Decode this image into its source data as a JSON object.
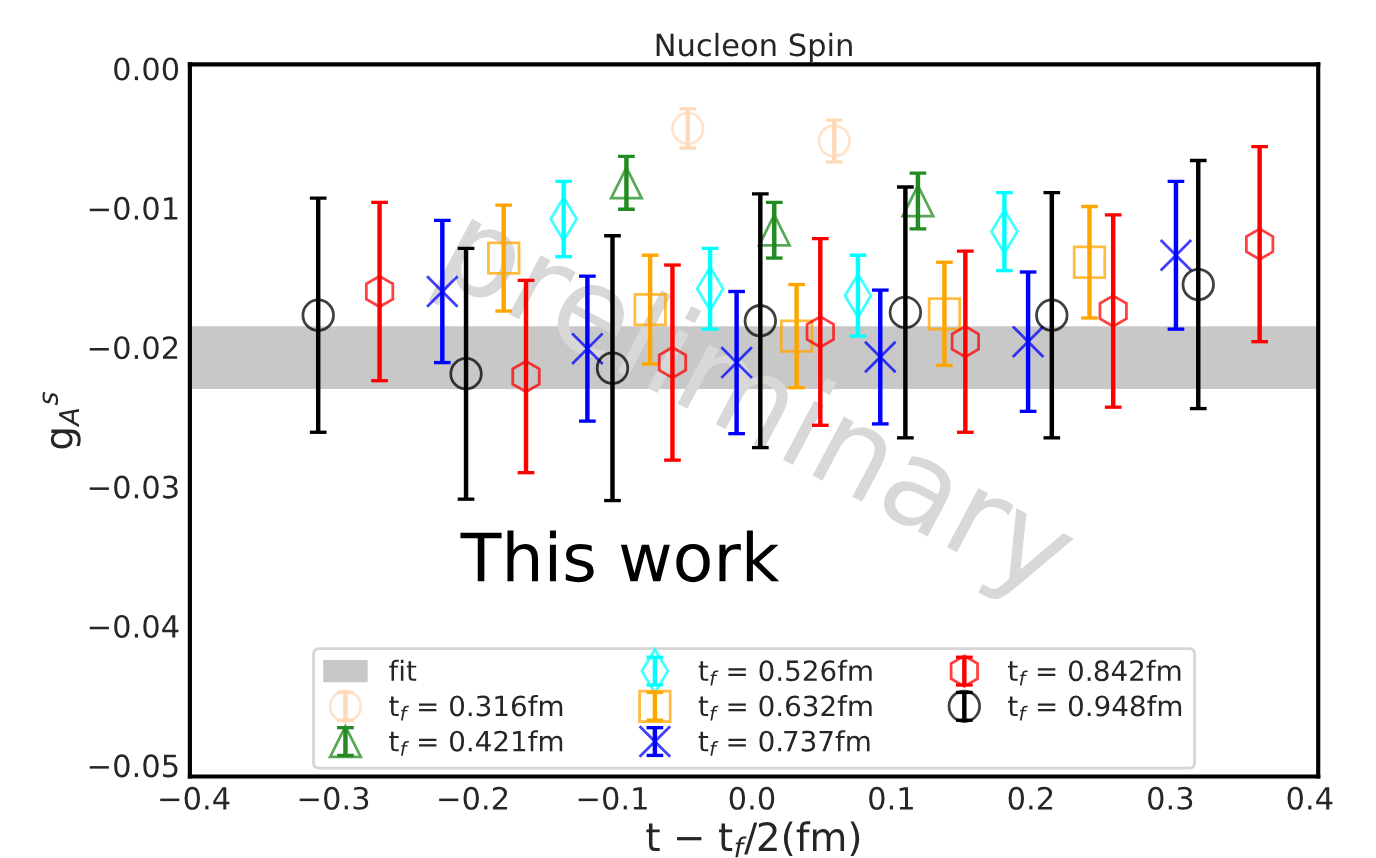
{
  "chart_data": {
    "type": "scatter",
    "title": "Nucleon Spin",
    "xlabel": "t − t$_{f}$/2(fm)",
    "ylabel": "g$_{A}$$^{s}$",
    "xlim": [
      -0.403,
      0.406
    ],
    "ylim": [
      -0.0508,
      0.0003
    ],
    "xticks": [
      {
        "value": -0.4,
        "label": "−0.4"
      },
      {
        "value": -0.3,
        "label": "−0.3"
      },
      {
        "value": -0.2,
        "label": "−0.2"
      },
      {
        "value": -0.1,
        "label": "−0.1"
      },
      {
        "value": 0.0,
        "label": "0.0"
      },
      {
        "value": 0.1,
        "label": "0.1"
      },
      {
        "value": 0.2,
        "label": "0.2"
      },
      {
        "value": 0.3,
        "label": "0.3"
      },
      {
        "value": 0.4,
        "label": "0.4"
      }
    ],
    "yticks": [
      {
        "value": 0.0,
        "label": "0.00"
      },
      {
        "value": -0.01,
        "label": "−0.01"
      },
      {
        "value": -0.02,
        "label": "−0.02"
      },
      {
        "value": -0.03,
        "label": "−0.03"
      },
      {
        "value": -0.04,
        "label": "−0.04"
      },
      {
        "value": -0.05,
        "label": "−0.05"
      }
    ],
    "bands": [
      {
        "axis": "y",
        "from": -0.023,
        "to": -0.0185,
        "label": "fit",
        "color": "#c8c8c8"
      }
    ],
    "legend": "bottom",
    "grid": false,
    "annotations": [
      "This work",
      "preliminary"
    ],
    "series": [
      {
        "name": "t$_{f}$ = 0.316fm",
        "color": "#ffdab9",
        "marker": "circle",
        "x": [
          -0.046,
          0.059
        ],
        "values": [
          -0.0043,
          -0.0052
        ],
        "errors": [
          0.0014,
          0.0015
        ]
      },
      {
        "name": "t$_{f}$ = 0.421fm",
        "color": "#228b22",
        "marker": "triangle",
        "x": [
          -0.09,
          0.016,
          0.119
        ],
        "values": [
          -0.0082,
          -0.0116,
          -0.0095
        ],
        "errors": [
          0.0019,
          0.002,
          0.002
        ]
      },
      {
        "name": "t$_{f}$ = 0.526fm",
        "color": "#00ffff",
        "marker": "diamond",
        "x": [
          -0.135,
          -0.03,
          0.076,
          0.181
        ],
        "values": [
          -0.0108,
          -0.0158,
          -0.0163,
          -0.0117
        ],
        "errors": [
          0.0027,
          0.0029,
          0.0029,
          0.0028
        ]
      },
      {
        "name": "t$_{f}$ = 0.632fm",
        "color": "#ffa500",
        "marker": "square",
        "x": [
          -0.178,
          -0.073,
          0.032,
          0.138,
          0.242
        ],
        "values": [
          -0.0136,
          -0.0173,
          -0.0192,
          -0.0176,
          -0.0139
        ],
        "errors": [
          0.0038,
          0.0039,
          0.0037,
          0.0037,
          0.004
        ]
      },
      {
        "name": "t$_{f}$ = 0.737fm",
        "color": "#0000ff",
        "marker": "cross",
        "x": [
          -0.222,
          -0.118,
          -0.011,
          0.092,
          0.198,
          0.304
        ],
        "values": [
          -0.016,
          -0.0201,
          -0.0211,
          -0.0207,
          -0.0196,
          -0.0134
        ],
        "errors": [
          0.0051,
          0.0052,
          0.0051,
          0.0048,
          0.005,
          0.0053
        ]
      },
      {
        "name": "t$_{f}$ = 0.842fm",
        "color": "#ff0000",
        "x": [
          -0.267,
          -0.162,
          -0.057,
          0.049,
          0.153,
          0.259,
          0.364
        ],
        "values": [
          -0.016,
          -0.0221,
          -0.0211,
          -0.0189,
          -0.0196,
          -0.0174,
          -0.0126
        ],
        "errors": [
          0.0064,
          0.0069,
          0.007,
          0.0067,
          0.0065,
          0.0069,
          0.007
        ]
      },
      {
        "name": "t$_{f}$ = 0.948fm",
        "color": "#000000",
        "marker": "circle",
        "x": [
          -0.311,
          -0.205,
          -0.1,
          0.006,
          0.11,
          0.215,
          0.32
        ],
        "values": [
          -0.0177,
          -0.0219,
          -0.0215,
          -0.0181,
          -0.0175,
          -0.0177,
          -0.0155
        ],
        "errors": [
          0.0084,
          0.009,
          0.0095,
          0.0091,
          0.009,
          0.0088,
          0.0089
        ]
      }
    ]
  }
}
